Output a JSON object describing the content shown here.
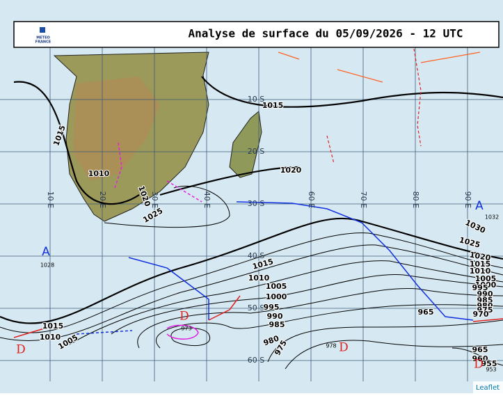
{
  "header": {
    "title": "Analyse de surface du 05/09/2026 - 12 UTC",
    "logo": [
      "METEO",
      "FRANCE"
    ]
  },
  "grid": {
    "lat_labels": [
      "10 S",
      "20 S",
      "30 S",
      "40 S",
      "50 S",
      "60 S"
    ],
    "lon_labels": [
      "10 E",
      "20 E",
      "30 E",
      "40 E",
      "60 E",
      "70 E",
      "80 E",
      "90 E"
    ]
  },
  "isobar_labels": [
    1015,
    1010,
    1020,
    1025,
    1015,
    1020,
    1030,
    1025,
    1020,
    1015,
    1010,
    1005,
    1000,
    995,
    990,
    985,
    980,
    975,
    970,
    965,
    1015,
    1010,
    1005,
    1000,
    995,
    990,
    985,
    980,
    975,
    1015,
    1010,
    1005,
    965,
    960,
    955
  ],
  "pressure_centers": [
    {
      "symbol": "A",
      "value": 1028
    },
    {
      "symbol": "A",
      "value": 1032
    },
    {
      "symbol": "D",
      "value": 973
    },
    {
      "symbol": "D",
      "value": 978
    },
    {
      "symbol": "D",
      "value": 953
    },
    {
      "symbol": "D"
    }
  ],
  "attribution": "Leaflet"
}
